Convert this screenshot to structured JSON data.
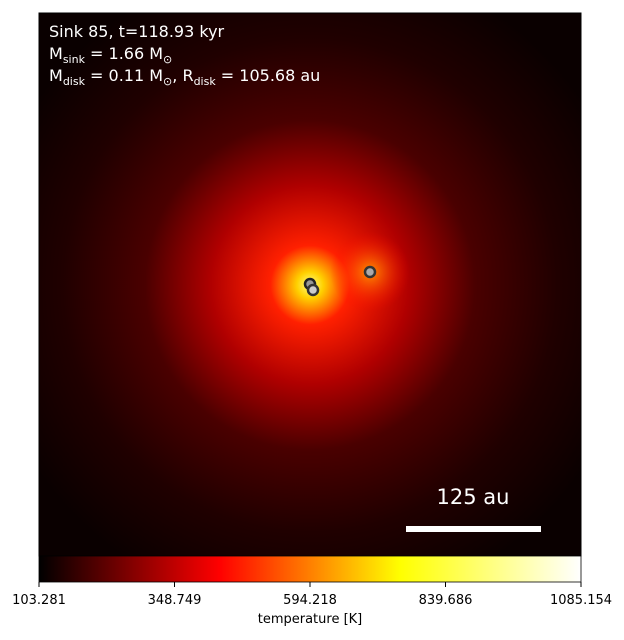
{
  "chart_data": {
    "type": "heatmap",
    "annotations": [
      [
        {
          "text": "Sink 85, t=118.93 kyr"
        }
      ],
      [
        {
          "text": "M"
        },
        {
          "sub": "sink"
        },
        {
          "text": " = 1.66 M"
        },
        {
          "sub": "⊙"
        }
      ],
      [
        {
          "text": "M"
        },
        {
          "sub": "disk"
        },
        {
          "text": " = 0.11 M"
        },
        {
          "sub": "⊙"
        },
        {
          "text": ", R"
        },
        {
          "sub": "disk"
        },
        {
          "text": " = 105.68 au"
        }
      ]
    ],
    "scale_bar_label": "125 au",
    "colorbar": {
      "label": "temperature [K]",
      "lim": [
        103.281,
        1085.154
      ],
      "ticks": [
        103.281,
        348.749,
        594.218,
        839.686,
        1085.154
      ],
      "colormap": [
        "#000000",
        "#ff0000",
        "#ffff00",
        "#ffffff"
      ]
    }
  }
}
